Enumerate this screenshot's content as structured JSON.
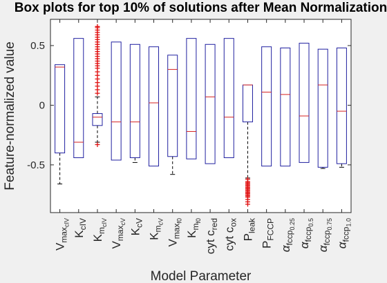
{
  "chart_data": {
    "type": "box",
    "title": "Box plots for top 10% of solutions after Mean Normalization",
    "xlabel": "Model Parameter",
    "ylabel": "Feature-normalized value",
    "ylim": [
      -0.9,
      0.72
    ],
    "yticks": [
      0.5,
      0,
      -0.5
    ],
    "ytick_labels": [
      "0.5",
      "0",
      "-0.5"
    ],
    "grid": false,
    "colors": {
      "box": "#1f1fa0",
      "median": "#d42020",
      "whisker": "#000000",
      "outlier": "#e01010",
      "axes_bg": "#ffffff",
      "figure_bg": "#f0f0f0"
    },
    "categories": [
      {
        "base": "V",
        "sub": "max",
        "subsub": "cIV",
        "kind": "text"
      },
      {
        "base": "K",
        "sub": "cIV",
        "kind": "text"
      },
      {
        "base": "K",
        "sub": "m",
        "subsub": "cIV",
        "kind": "text"
      },
      {
        "base": "V",
        "sub": "max",
        "subsub": "cV",
        "kind": "text"
      },
      {
        "base": "K",
        "sub": "cV",
        "kind": "text"
      },
      {
        "base": "K",
        "sub": "m",
        "subsub": "cV",
        "kind": "text"
      },
      {
        "base": "V",
        "sub": "max",
        "subsub": "f0",
        "kind": "text"
      },
      {
        "base": "K",
        "sub": "m",
        "subsub": "f0",
        "kind": "text"
      },
      {
        "base": "cyt c",
        "sub": "red",
        "kind": "text"
      },
      {
        "base": "cyt c",
        "sub": "ox",
        "kind": "text"
      },
      {
        "base": "P",
        "sub": "leak",
        "kind": "text"
      },
      {
        "base": "P",
        "sub": "FCCP",
        "kind": "text"
      },
      {
        "base": "α",
        "sub": "fccp",
        "subsub": "0.25",
        "kind": "greek"
      },
      {
        "base": "α",
        "sub": "fccp",
        "subsub": "0.5",
        "kind": "greek"
      },
      {
        "base": "α",
        "sub": "fccp",
        "subsub": "0.75",
        "kind": "greek"
      },
      {
        "base": "α",
        "sub": "fccp",
        "subsub": "1.0",
        "kind": "greek"
      }
    ],
    "boxes": [
      {
        "q1": -0.4,
        "median": 0.32,
        "q3": 0.34,
        "whisker_low": -0.66,
        "whisker_high": 0.34,
        "outliers": []
      },
      {
        "q1": -0.44,
        "median": -0.31,
        "q3": 0.56,
        "whisker_low": -0.44,
        "whisker_high": 0.56,
        "outliers": []
      },
      {
        "q1": -0.17,
        "median": -0.1,
        "q3": -0.07,
        "whisker_low": -0.31,
        "whisker_high": 0.07,
        "outliers": [
          0.66,
          0.65,
          0.63,
          0.61,
          0.59,
          0.57,
          0.55,
          0.53,
          0.51,
          0.49,
          0.47,
          0.45,
          0.43,
          0.41,
          0.39,
          0.37,
          0.35,
          0.33,
          0.31,
          0.28,
          0.25,
          0.22,
          0.19,
          0.16,
          0.13,
          0.1,
          -0.33
        ]
      },
      {
        "q1": -0.46,
        "median": -0.14,
        "q3": 0.53,
        "whisker_low": -0.46,
        "whisker_high": 0.53,
        "outliers": []
      },
      {
        "q1": -0.44,
        "median": -0.14,
        "q3": 0.51,
        "whisker_low": -0.48,
        "whisker_high": 0.51,
        "outliers": []
      },
      {
        "q1": -0.51,
        "median": 0.02,
        "q3": 0.49,
        "whisker_low": -0.51,
        "whisker_high": 0.49,
        "outliers": []
      },
      {
        "q1": -0.43,
        "median": 0.3,
        "q3": 0.42,
        "whisker_low": -0.58,
        "whisker_high": 0.42,
        "outliers": []
      },
      {
        "q1": -0.45,
        "median": -0.22,
        "q3": 0.56,
        "whisker_low": -0.45,
        "whisker_high": 0.56,
        "outliers": []
      },
      {
        "q1": -0.49,
        "median": 0.07,
        "q3": 0.51,
        "whisker_low": -0.49,
        "whisker_high": 0.51,
        "outliers": []
      },
      {
        "q1": -0.44,
        "median": -0.1,
        "q3": 0.56,
        "whisker_low": -0.44,
        "whisker_high": 0.56,
        "outliers": []
      },
      {
        "q1": -0.14,
        "median": 0.17,
        "q3": 0.17,
        "whisker_low": -0.61,
        "whisker_high": 0.17,
        "outliers": [
          -0.62,
          -0.64,
          -0.65,
          -0.66,
          -0.67,
          -0.68,
          -0.69,
          -0.7,
          -0.71,
          -0.72,
          -0.73,
          -0.74,
          -0.75,
          -0.76,
          -0.77,
          -0.79,
          -0.81,
          -0.83
        ]
      },
      {
        "q1": -0.51,
        "median": 0.11,
        "q3": 0.49,
        "whisker_low": -0.51,
        "whisker_high": 0.49,
        "outliers": []
      },
      {
        "q1": -0.51,
        "median": 0.09,
        "q3": 0.48,
        "whisker_low": -0.51,
        "whisker_high": 0.48,
        "outliers": []
      },
      {
        "q1": -0.48,
        "median": -0.09,
        "q3": 0.52,
        "whisker_low": -0.48,
        "whisker_high": 0.52,
        "outliers": []
      },
      {
        "q1": -0.52,
        "median": 0.17,
        "q3": 0.47,
        "whisker_low": -0.53,
        "whisker_high": 0.47,
        "outliers": []
      },
      {
        "q1": -0.49,
        "median": -0.05,
        "q3": 0.48,
        "whisker_low": -0.52,
        "whisker_high": 0.48,
        "outliers": []
      }
    ]
  }
}
